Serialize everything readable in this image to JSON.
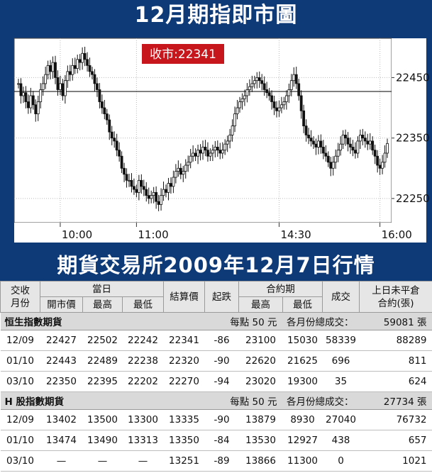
{
  "top_title": "12月期指即市圖",
  "close_label": "收市:22341",
  "mid_title": "期貨交易所2009年12月7日行情",
  "chart_data": {
    "type": "candlestick",
    "title": "12月期指即市圖",
    "annotation": "收市:22341",
    "x_ticks": [
      "10:00",
      "11:00",
      "14:30",
      "16:00"
    ],
    "y_ticks": [
      22450,
      22350,
      22250
    ],
    "ylim": [
      22210,
      22515
    ],
    "reference_line": 22427,
    "grid": true,
    "series": [
      {
        "values": [
          22440,
          22420,
          22425,
          22410,
          22400,
          22420,
          22405,
          22390,
          22410,
          22430,
          22440,
          22455,
          22470,
          22460,
          22475,
          22450,
          22430,
          22440,
          22420,
          22445,
          22460,
          22455,
          22470,
          22465,
          22480,
          22475,
          22490,
          22480,
          22470,
          22460,
          22455,
          22440,
          22430,
          22410,
          22400,
          22390,
          22380,
          22360,
          22350,
          22345,
          22330,
          22320,
          22300,
          22290,
          22280,
          22280,
          22270,
          22265,
          22260,
          22280,
          22270,
          22265,
          22255,
          22250,
          22255,
          22260,
          22245,
          22240,
          22255,
          22265,
          22260,
          22275,
          22270,
          22285,
          22295,
          22300,
          22290,
          22295,
          22305,
          22310,
          22320,
          22325,
          22320,
          22330,
          22325,
          22335,
          22330,
          22320,
          22325,
          22330,
          22335,
          22330,
          22325,
          22330,
          22340,
          22345,
          22355,
          22370,
          22390,
          22400,
          22410,
          22415,
          22420,
          22430,
          22435,
          22440,
          22445,
          22450,
          22445,
          22440,
          22430,
          22425,
          22420,
          22410,
          22400,
          22395,
          22400,
          22405,
          22410,
          22420,
          22430,
          22445,
          22455,
          22440,
          22420,
          22395,
          22370,
          22355,
          22350,
          22345,
          22340,
          22335,
          22345,
          22335,
          22325,
          22320,
          22310,
          22300,
          22310,
          22320,
          22330,
          22340,
          22355,
          22350,
          22340,
          22335,
          22330,
          22325,
          22345,
          22355,
          22350,
          22345,
          22340,
          22345,
          22330,
          22320,
          22305,
          22300,
          22310,
          22325,
          22341
        ]
      }
    ]
  },
  "table": {
    "headers": {
      "month": "交收\n月份",
      "today": "當日",
      "open": "開市價",
      "high": "最高",
      "low": "最低",
      "settle": "結算價",
      "change": "起跌",
      "contract": "合約期",
      "c_high": "最高",
      "c_low": "最低",
      "volume": "成交",
      "oi": "上日未平倉\n合約(張)"
    },
    "sections": [
      {
        "name": "恒生指數期貨",
        "point": "每點 50 元",
        "total_label": "各月份總成交：",
        "total": "59081 張",
        "rows": [
          [
            "12/09",
            "22427",
            "22502",
            "22242",
            "22341",
            "-86",
            "23100",
            "15030",
            "58339",
            "88289"
          ],
          [
            "01/10",
            "22443",
            "22489",
            "22238",
            "22320",
            "-90",
            "22620",
            "21625",
            "696",
            "811"
          ],
          [
            "03/10",
            "22350",
            "22395",
            "22202",
            "22270",
            "-94",
            "23020",
            "19300",
            "35",
            "624"
          ]
        ]
      },
      {
        "name": "H 股指數期貨",
        "point": "每點 50 元",
        "total_label": "各月份總成交：",
        "total": "27734 張",
        "rows": [
          [
            "12/09",
            "13402",
            "13500",
            "13300",
            "13335",
            "-90",
            "13879",
            "8930",
            "27040",
            "76732"
          ],
          [
            "01/10",
            "13474",
            "13490",
            "13313",
            "13350",
            "-84",
            "13530",
            "12927",
            "438",
            "657"
          ],
          [
            "03/10",
            "—",
            "—",
            "—",
            "13251",
            "-89",
            "13866",
            "11300",
            "0",
            "1021"
          ]
        ]
      }
    ]
  }
}
